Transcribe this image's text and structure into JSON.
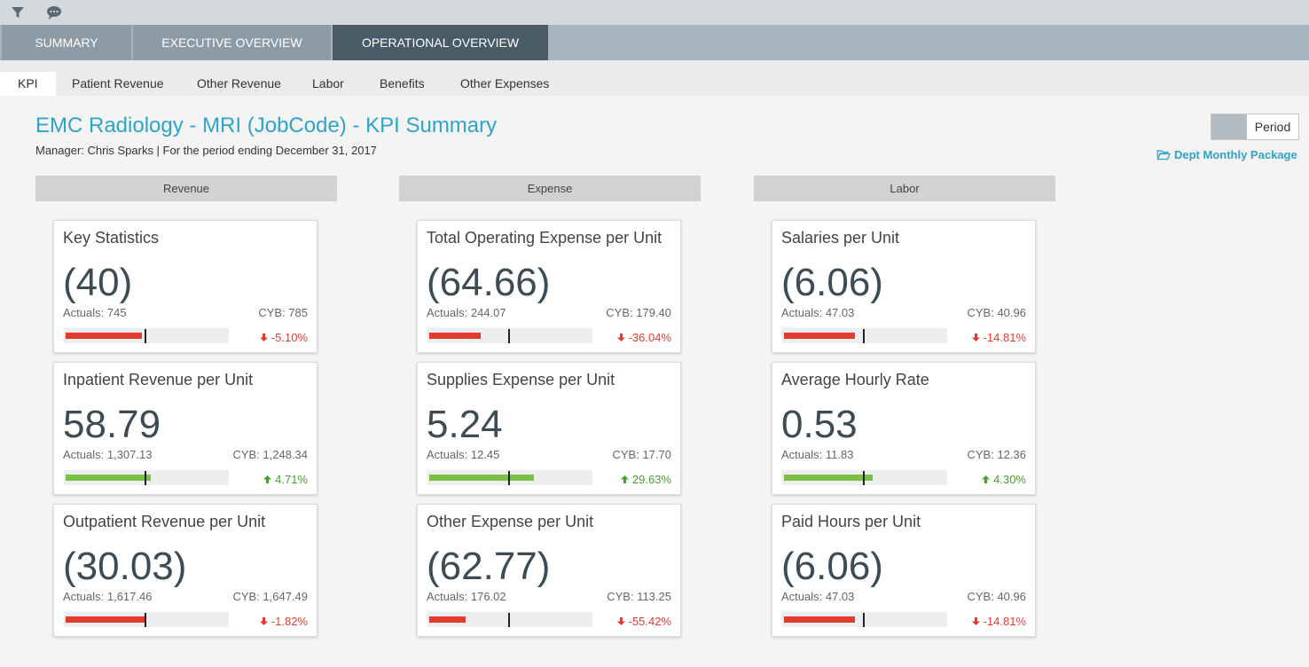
{
  "toolbar": {
    "icons": [
      "filter-icon",
      "comment-icon"
    ]
  },
  "tabs": [
    {
      "label": "SUMMARY",
      "active": false
    },
    {
      "label": "EXECUTIVE OVERVIEW",
      "active": false
    },
    {
      "label": "OPERATIONAL OVERVIEW",
      "active": true
    }
  ],
  "subtabs": [
    {
      "label": "KPI",
      "active": true
    },
    {
      "label": "Patient Revenue",
      "active": false
    },
    {
      "label": "Other Revenue",
      "active": false
    },
    {
      "label": "Labor",
      "active": false
    },
    {
      "label": "Benefits",
      "active": false
    },
    {
      "label": "Other Expenses",
      "active": false
    }
  ],
  "page": {
    "title": "EMC Radiology - MRI (JobCode) - KPI Summary",
    "subtitle": "Manager: Chris Sparks | For the period ending December 31, 2017"
  },
  "period_toggle": {
    "label": "Period"
  },
  "dept_package": {
    "label": "Dept Monthly Package",
    "icon": "folder-open-icon"
  },
  "colors": {
    "accent": "#2fa3c8",
    "negative": "#e23b2e",
    "positive": "#79c044",
    "active_tab": "#485b66"
  },
  "columns": [
    {
      "header": "Revenue",
      "cards": [
        {
          "title": "Key Statistics",
          "value": "(40)",
          "actuals": "Actuals: 745",
          "cyb": "CYB: 785",
          "variance": "-5.10%",
          "direction": "down",
          "bar_fill": 0.95
        },
        {
          "title": "Inpatient Revenue per Unit",
          "value": "58.79",
          "actuals": "Actuals: 1,307.13",
          "cyb": "CYB: 1,248.34",
          "variance": "4.71%",
          "direction": "up",
          "bar_fill": 1.05
        },
        {
          "title": "Outpatient Revenue per Unit",
          "value": "(30.03)",
          "actuals": "Actuals: 1,617.46",
          "cyb": "CYB: 1,647.49",
          "variance": "-1.82%",
          "direction": "down",
          "bar_fill": 0.98
        }
      ]
    },
    {
      "header": "Expense",
      "cards": [
        {
          "title": "Total Operating Expense per Unit",
          "value": "(64.66)",
          "actuals": "Actuals: 244.07",
          "cyb": "CYB: 179.40",
          "variance": "-36.04%",
          "direction": "down",
          "bar_fill": 0.64
        },
        {
          "title": "Supplies Expense per Unit",
          "value": "5.24",
          "actuals": "Actuals: 12.45",
          "cyb": "CYB: 17.70",
          "variance": "29.63%",
          "direction": "up",
          "bar_fill": 1.3
        },
        {
          "title": "Other Expense per Unit",
          "value": "(62.77)",
          "actuals": "Actuals: 176.02",
          "cyb": "CYB: 113.25",
          "variance": "-55.42%",
          "direction": "down",
          "bar_fill": 0.45
        }
      ]
    },
    {
      "header": "Labor",
      "cards": [
        {
          "title": "Salaries per Unit",
          "value": "(6.06)",
          "actuals": "Actuals: 47.03",
          "cyb": "CYB: 40.96",
          "variance": "-14.81%",
          "direction": "down",
          "bar_fill": 0.88
        },
        {
          "title": "Average Hourly Rate",
          "value": "0.53",
          "actuals": "Actuals: 11.83",
          "cyb": "CYB: 12.36",
          "variance": "4.30%",
          "direction": "up",
          "bar_fill": 1.1
        },
        {
          "title": "Paid Hours per Unit",
          "value": "(6.06)",
          "actuals": "Actuals: 47.03",
          "cyb": "CYB: 40.96",
          "variance": "-14.81%",
          "direction": "down",
          "bar_fill": 0.88
        }
      ]
    }
  ]
}
